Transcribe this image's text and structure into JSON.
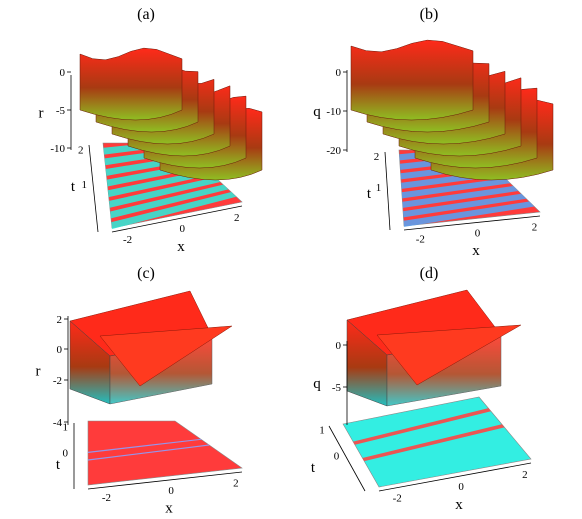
{
  "chart_data": [
    {
      "id": "a",
      "type": "surface3d",
      "label": "(a)",
      "surface": "periodic",
      "zlabel": "r",
      "zticks": [
        "0",
        "-5",
        "-10"
      ],
      "zrange": [
        -11,
        2
      ],
      "tlabel": "t",
      "tticks": [
        "1",
        "2"
      ],
      "xlabel": "x",
      "xticks": [
        "-2",
        "0",
        "2"
      ],
      "surface_color_top": "#ff2a1a",
      "surface_color_bottom": "#8fbf22",
      "contour_base": "#ff3b3b",
      "contour_stripe": "#33e6d6"
    },
    {
      "id": "b",
      "type": "surface3d",
      "label": "(b)",
      "surface": "periodic",
      "zlabel": "q",
      "zticks": [
        "0",
        "-10",
        "-20"
      ],
      "zrange": [
        -22,
        2
      ],
      "tlabel": "t",
      "tticks": [
        "1",
        "2"
      ],
      "xlabel": "x",
      "xticks": [
        "-2",
        "0",
        "2"
      ],
      "surface_color_top": "#ff2a1a",
      "surface_color_bottom": "#8fbf22",
      "contour_base": "#ff3b3b",
      "contour_stripe": "#5aa0f0"
    },
    {
      "id": "c",
      "type": "surface3d",
      "label": "(c)",
      "surface": "single",
      "zlabel": "r",
      "zticks": [
        "2",
        "0",
        "-2",
        "-4"
      ],
      "zrange": [
        -4,
        2
      ],
      "tlabel": "t",
      "tticks": [
        "0",
        "1"
      ],
      "xlabel": "x",
      "xticks": [
        "-2",
        "0",
        "2"
      ],
      "surface_color_top": "#ff2a1a",
      "surface_color_bottom": "#22bfbf",
      "contour_base": "#ff3b3b",
      "contour_stripe": "#8aa0ff"
    },
    {
      "id": "d",
      "type": "surface3d",
      "label": "(d)",
      "surface": "single",
      "zlabel": "q",
      "zticks": [
        "0",
        "-5"
      ],
      "zrange": [
        -8,
        2
      ],
      "tlabel": "t",
      "tticks": [
        "0",
        "1"
      ],
      "xlabel": "x",
      "xticks": [
        "-2",
        "0",
        "2"
      ],
      "surface_color_top": "#ff2a1a",
      "surface_color_bottom": "#22bfbf",
      "contour_base": "#33eee2",
      "contour_stripe": "#ff4444"
    }
  ]
}
